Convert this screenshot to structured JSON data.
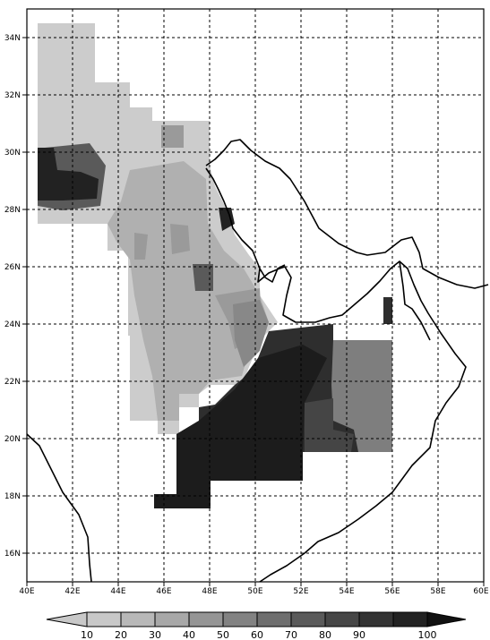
{
  "map": {
    "region": {
      "lon_min": 40,
      "lon_max": 60,
      "lat_min": 15,
      "lat_max": 35
    },
    "x_ticks": [
      "40E",
      "42E",
      "44E",
      "46E",
      "48E",
      "50E",
      "52E",
      "54E",
      "56E",
      "58E",
      "60E"
    ],
    "y_ticks": [
      "34N",
      "32N",
      "30N",
      "28N",
      "26N",
      "24N",
      "22N",
      "20N",
      "18N",
      "16N"
    ],
    "colors": {
      "frame": "#000000",
      "land": "#ffffff",
      "c10": "#cccccc",
      "c20": "#c0c0c0",
      "c30": "#b0b0b0",
      "c40": "#9a9a9a",
      "c50": "#888888",
      "c60": "#6e6e6e",
      "c70": "#5a5a5a",
      "c80": "#454545",
      "c90": "#333333",
      "c100": "#222222"
    }
  },
  "colorbar": {
    "labels": [
      "10",
      "20",
      "30",
      "40",
      "50",
      "60",
      "70",
      "80",
      "90",
      "100"
    ],
    "colors": [
      "#c8c8c8",
      "#b8b8b8",
      "#a8a8a8",
      "#959595",
      "#828282",
      "#6e6e6e",
      "#5a5a5a",
      "#464646",
      "#333333",
      "#222222",
      "#111111"
    ]
  }
}
